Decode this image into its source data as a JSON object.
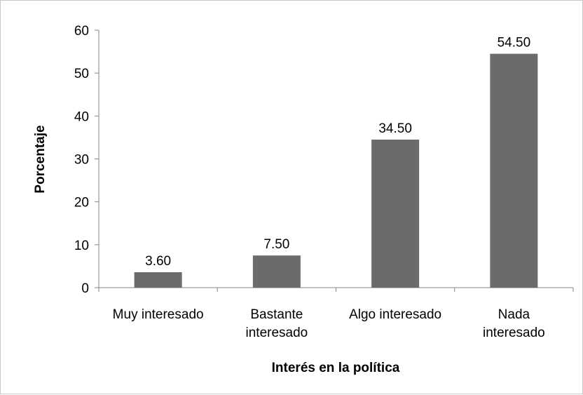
{
  "chart_data": {
    "type": "bar",
    "categories": [
      [
        "Muy interesado"
      ],
      [
        "Bastante",
        "interesado"
      ],
      [
        "Algo interesado"
      ],
      [
        "Nada",
        "interesado"
      ]
    ],
    "values": [
      3.6,
      7.5,
      34.5,
      54.5
    ],
    "data_labels": [
      "3.60",
      "7.50",
      "34.50",
      "54.50"
    ],
    "title": "",
    "xlabel": "Interés en la  política",
    "ylabel": "Porcentaje",
    "ylim": [
      0,
      60
    ],
    "yticks": [
      0,
      10,
      20,
      30,
      40,
      50,
      60
    ],
    "grid": false,
    "legend": "none",
    "bar_color": "#6b6b6b",
    "axis_color": "#868686"
  }
}
